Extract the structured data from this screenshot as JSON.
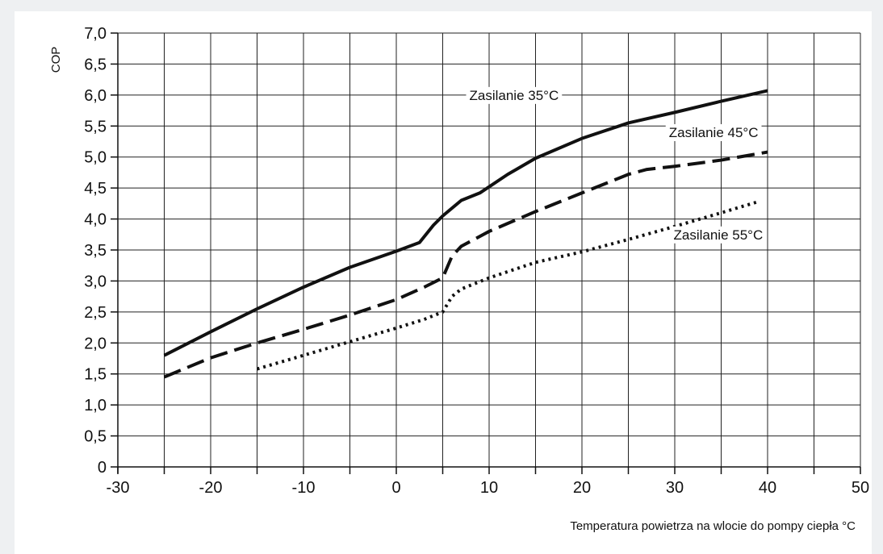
{
  "chart_data": {
    "type": "line",
    "title": "",
    "xlabel": "Temperatura powietrza na wlocie do pompy ciepła °C",
    "ylabel": "COP",
    "xlim": [
      -30,
      50
    ],
    "ylim": [
      0,
      7
    ],
    "x_ticks": [
      -30,
      -20,
      -10,
      0,
      10,
      20,
      30,
      40,
      50
    ],
    "x_tick_labels": [
      "-30",
      "-20",
      "-10",
      "0",
      "10",
      "20",
      "30",
      "40",
      "50"
    ],
    "y_ticks": [
      0,
      0.5,
      1,
      1.5,
      2,
      2.5,
      3,
      3.5,
      4,
      4.5,
      5,
      5.5,
      6,
      6.5,
      7
    ],
    "y_tick_labels": [
      "0",
      "0,5",
      "1,0",
      "1,5",
      "2,0",
      "2,5",
      "3,0",
      "3,5",
      "4,0",
      "4,5",
      "5,0",
      "5,5",
      "6,0",
      "6,5",
      "7,0"
    ],
    "grid": true,
    "legend": "none",
    "series": [
      {
        "name": "Zasilanie 35°C",
        "line_style": "solid",
        "color": "#111111",
        "points": [
          [
            -25,
            1.8
          ],
          [
            -20,
            2.18
          ],
          [
            -15,
            2.55
          ],
          [
            -10,
            2.9
          ],
          [
            -5,
            3.22
          ],
          [
            0,
            3.48
          ],
          [
            2.5,
            3.62
          ],
          [
            4,
            3.9
          ],
          [
            5,
            4.05
          ],
          [
            7,
            4.3
          ],
          [
            9,
            4.42
          ],
          [
            12,
            4.72
          ],
          [
            15,
            4.98
          ],
          [
            20,
            5.3
          ],
          [
            25,
            5.55
          ],
          [
            30,
            5.72
          ],
          [
            35,
            5.9
          ],
          [
            40,
            6.07
          ]
        ]
      },
      {
        "name": "Zasilanie 45°C",
        "line_style": "dashed",
        "color": "#111111",
        "points": [
          [
            -25,
            1.45
          ],
          [
            -20,
            1.76
          ],
          [
            -15,
            2.0
          ],
          [
            -10,
            2.22
          ],
          [
            -5,
            2.45
          ],
          [
            0,
            2.7
          ],
          [
            3,
            2.9
          ],
          [
            5,
            3.05
          ],
          [
            6,
            3.4
          ],
          [
            7,
            3.56
          ],
          [
            10,
            3.8
          ],
          [
            15,
            4.12
          ],
          [
            20,
            4.42
          ],
          [
            25,
            4.72
          ],
          [
            27,
            4.8
          ],
          [
            30,
            4.85
          ],
          [
            35,
            4.95
          ],
          [
            40,
            5.08
          ]
        ]
      },
      {
        "name": "Zasilanie 55°C",
        "line_style": "dotted",
        "color": "#111111",
        "points": [
          [
            -15,
            1.58
          ],
          [
            -10,
            1.8
          ],
          [
            -5,
            2.02
          ],
          [
            0,
            2.24
          ],
          [
            3,
            2.38
          ],
          [
            5,
            2.5
          ],
          [
            6,
            2.75
          ],
          [
            7,
            2.87
          ],
          [
            10,
            3.05
          ],
          [
            15,
            3.3
          ],
          [
            20,
            3.47
          ],
          [
            25,
            3.67
          ],
          [
            30,
            3.88
          ],
          [
            35,
            4.1
          ],
          [
            39,
            4.28
          ]
        ]
      }
    ],
    "annotations": [
      {
        "series": 0,
        "text": "Zasilanie 35°C",
        "x": 17.5,
        "y": 6.0
      },
      {
        "series": 1,
        "text": "Zasilanie 45°C",
        "x": 39,
        "y": 5.4
      },
      {
        "series": 2,
        "text": "Zasilanie 55°C",
        "x": 39.5,
        "y": 3.75
      }
    ]
  }
}
